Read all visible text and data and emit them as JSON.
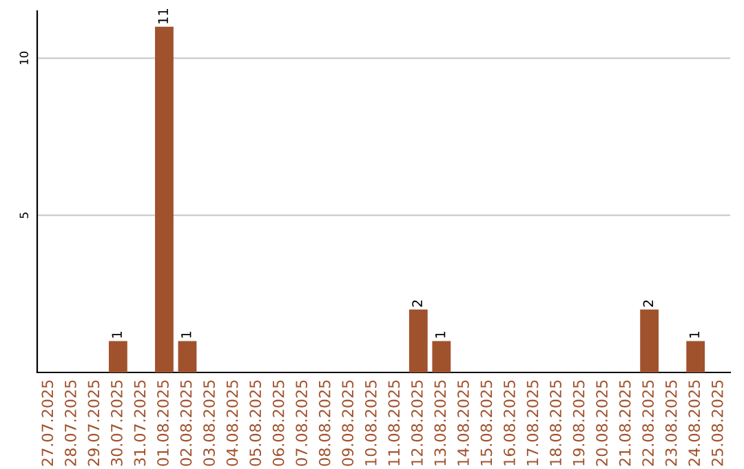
{
  "chart_data": {
    "type": "bar",
    "categories": [
      "27.07.2025",
      "28.07.2025",
      "29.07.2025",
      "30.07.2025",
      "31.07.2025",
      "01.08.2025",
      "02.08.2025",
      "03.08.2025",
      "04.08.2025",
      "05.08.2025",
      "06.08.2025",
      "07.08.2025",
      "08.08.2025",
      "09.08.2025",
      "10.08.2025",
      "11.08.2025",
      "12.08.2025",
      "13.08.2025",
      "14.08.2025",
      "15.08.2025",
      "16.08.2025",
      "17.08.2025",
      "18.08.2025",
      "19.08.2025",
      "20.08.2025",
      "21.08.2025",
      "22.08.2025",
      "23.08.2025",
      "24.08.2025",
      "25.08.2025"
    ],
    "values": [
      0,
      0,
      0,
      1,
      0,
      11,
      1,
      0,
      0,
      0,
      0,
      0,
      0,
      0,
      0,
      0,
      2,
      1,
      0,
      0,
      0,
      0,
      0,
      0,
      0,
      0,
      2,
      0,
      1,
      0
    ],
    "value_labels": [
      null,
      null,
      null,
      "1",
      null,
      "11",
      "1",
      null,
      null,
      null,
      null,
      null,
      null,
      null,
      null,
      null,
      "2",
      "1",
      null,
      null,
      null,
      null,
      null,
      null,
      null,
      null,
      "2",
      null,
      "1",
      null
    ],
    "color": "#a0522d",
    "ylim": [
      0,
      11.5
    ],
    "yticks": [
      5,
      10
    ],
    "grid": "y"
  }
}
